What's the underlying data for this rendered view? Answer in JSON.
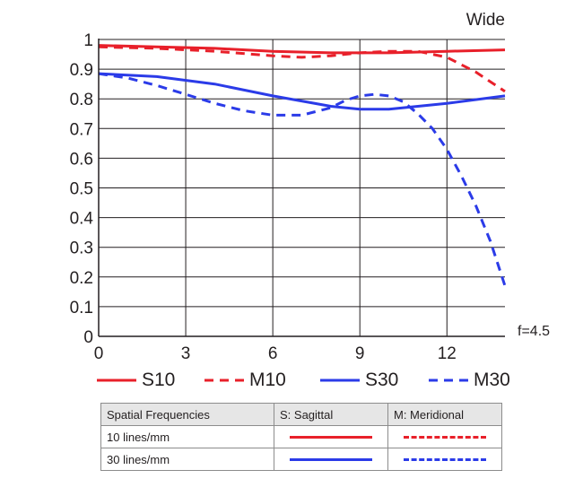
{
  "chart_data": {
    "type": "line",
    "title": "Wide",
    "aperture_label": "f=4.5",
    "xlim": [
      0,
      14
    ],
    "ylim": [
      0,
      1
    ],
    "x_ticks": [
      0,
      3,
      6,
      9,
      12
    ],
    "y_ticks": [
      0,
      0.1,
      0.2,
      0.3,
      0.4,
      0.5,
      0.6,
      0.7,
      0.8,
      0.9,
      1
    ],
    "x_tick_labels": [
      "0",
      "3",
      "6",
      "9",
      "12"
    ],
    "y_tick_labels": [
      "0",
      "0.1",
      "0.2",
      "0.3",
      "0.4",
      "0.5",
      "0.6",
      "0.7",
      "0.8",
      "0.9",
      "1"
    ],
    "grid": true,
    "series": [
      {
        "name": "S10",
        "color": "#e8202a",
        "dash": "solid",
        "x": [
          0,
          2,
          4,
          6,
          8,
          9,
          10,
          12,
          14
        ],
        "y": [
          0.98,
          0.975,
          0.97,
          0.96,
          0.955,
          0.955,
          0.955,
          0.96,
          0.965
        ]
      },
      {
        "name": "M10",
        "color": "#e8202a",
        "dash": "dashed",
        "x": [
          0,
          2,
          4,
          6,
          7,
          8,
          9,
          10,
          11,
          12,
          13,
          14
        ],
        "y": [
          0.975,
          0.97,
          0.96,
          0.945,
          0.94,
          0.945,
          0.955,
          0.96,
          0.96,
          0.94,
          0.89,
          0.825
        ]
      },
      {
        "name": "S30",
        "color": "#2b3be8",
        "dash": "solid",
        "x": [
          0,
          2,
          4,
          6,
          8,
          9,
          10,
          12,
          14
        ],
        "y": [
          0.885,
          0.875,
          0.85,
          0.81,
          0.775,
          0.765,
          0.765,
          0.785,
          0.81
        ]
      },
      {
        "name": "M30",
        "color": "#2b3be8",
        "dash": "dashed",
        "x": [
          0,
          1,
          2,
          3,
          4,
          5,
          6,
          7,
          8,
          8.5,
          9,
          9.5,
          10,
          10.5,
          11,
          11.5,
          12,
          12.5,
          13,
          13.5,
          14
        ],
        "y": [
          0.885,
          0.87,
          0.845,
          0.815,
          0.785,
          0.76,
          0.745,
          0.745,
          0.77,
          0.795,
          0.81,
          0.815,
          0.81,
          0.79,
          0.75,
          0.7,
          0.63,
          0.54,
          0.44,
          0.32,
          0.17
        ]
      }
    ]
  },
  "legend": [
    {
      "label": "S10",
      "color": "#e8202a",
      "dash": "solid"
    },
    {
      "label": "M10",
      "color": "#e8202a",
      "dash": "dashed"
    },
    {
      "label": "S30",
      "color": "#2b3be8",
      "dash": "solid"
    },
    {
      "label": "M30",
      "color": "#2b3be8",
      "dash": "dashed"
    }
  ],
  "table": {
    "header": [
      "Spatial Frequencies",
      "S: Sagittal",
      "M: Meridional"
    ],
    "rows": [
      {
        "label": "10 lines/mm",
        "color": "#e8202a"
      },
      {
        "label": "30 lines/mm",
        "color": "#2b3be8"
      }
    ]
  }
}
